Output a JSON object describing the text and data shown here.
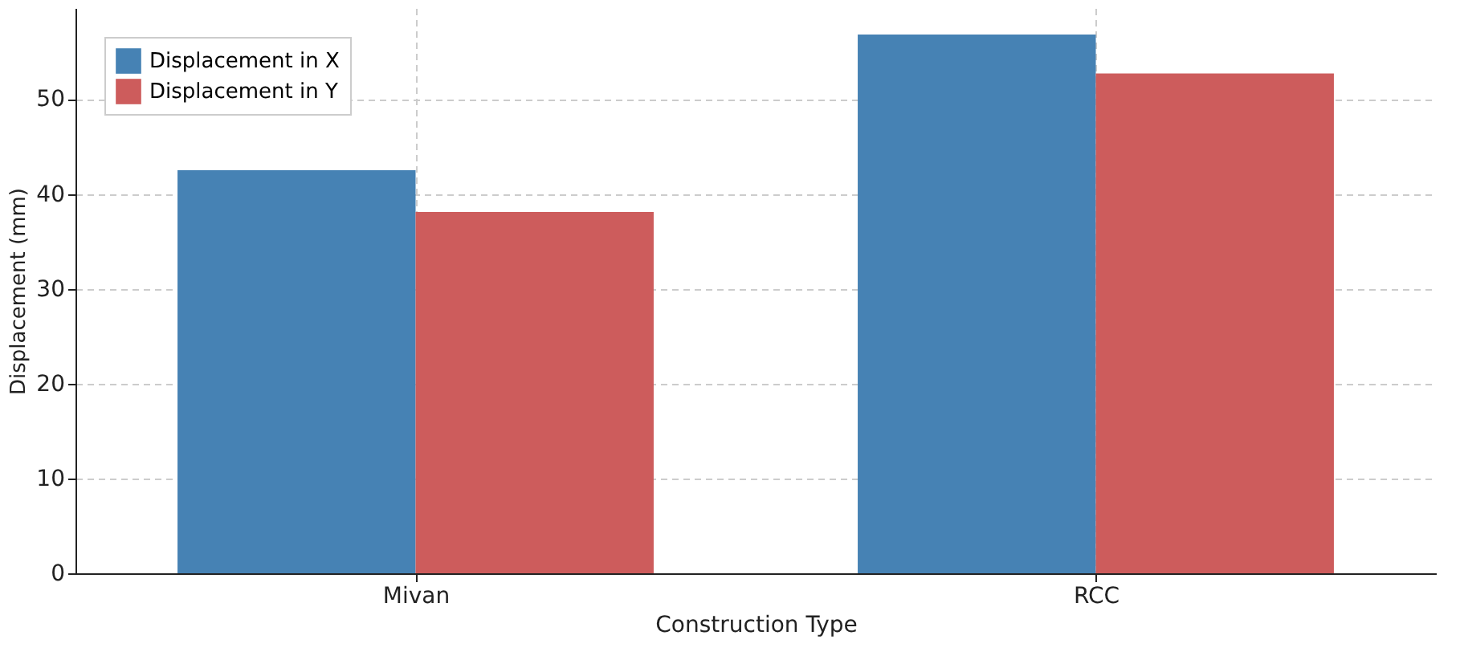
{
  "chart_data": {
    "type": "bar",
    "xlabel": "Construction Type",
    "ylabel": "Displacement (mm)",
    "categories": [
      "Mivan",
      "RCC"
    ],
    "series": [
      {
        "name": "Displacement in X",
        "color": "#4682b4",
        "values": [
          42.5,
          56.8
        ]
      },
      {
        "name": "Displacement in Y",
        "color": "#cd5c5c",
        "values": [
          38.1,
          52.7
        ]
      }
    ],
    "ylim": [
      0,
      59.6
    ],
    "yticks": [
      0,
      10,
      20,
      30,
      40,
      50
    ],
    "grid": true,
    "legend": "top left"
  }
}
